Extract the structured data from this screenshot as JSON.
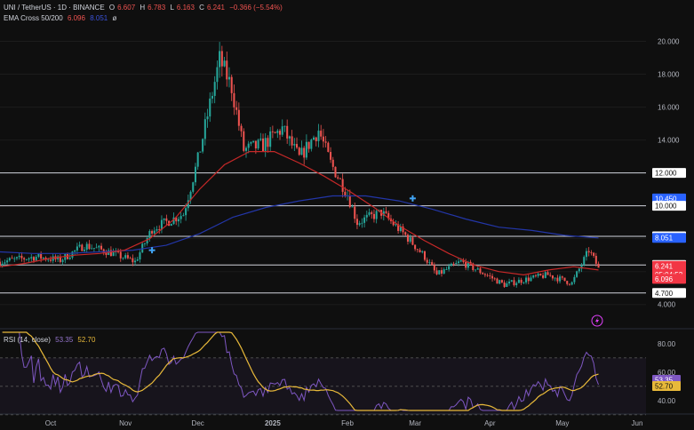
{
  "legend": {
    "symbol": "UNI / TetherUS · 1D · BINANCE",
    "open_label": "O",
    "open": "6.607",
    "high_label": "H",
    "high": "6.783",
    "low_label": "L",
    "low": "6.163",
    "close_label": "C",
    "close": "6.241",
    "change": "−0.366 (−5.54%)",
    "ema_label": "EMA Cross 50/200",
    "ema_fast": "6.096",
    "ema_slow": "8.051",
    "ema_icon": "ø",
    "rsi_label": "RSI (14, close)",
    "rsi_value": "53.35",
    "rsi_ma": "52.70"
  },
  "colors": {
    "bg": "#0f0f0f",
    "up": "#26a69a",
    "down": "#ef5350",
    "ema_fast": "#c62828",
    "ema_slow": "#2336a8",
    "rsi": "#7e57c2",
    "rsi_ma": "#e8b93a",
    "hline": "#d1d4dc",
    "cross_marker": "#42a5f5",
    "price_tag_current": "#f23645",
    "price_tag_ema_fast": "#f23645",
    "price_tag_ema_slow": "#2962ff",
    "price_tag_level": "#ffffff",
    "price_tag_blue": "#2962ff",
    "lightning_icon": "#e040fb"
  },
  "chart_data": [
    {
      "type": "candlestick",
      "title": "UNI / TetherUS · 1D · BINANCE",
      "x_tick_labels": [
        "Oct",
        "Nov",
        "Dec",
        "2025",
        "Feb",
        "Mar",
        "Apr",
        "May",
        "Jun"
      ],
      "y_tick_labels": [
        "4.000",
        "6.000",
        "8.000",
        "10.000",
        "12.000",
        "14.000",
        "16.000",
        "18.000",
        "20.000"
      ],
      "ylim": [
        3.5,
        21.0
      ],
      "y_scale": "linear",
      "approx_close_path": [
        {
          "date": "Sep 10",
          "close": 6.6
        },
        {
          "date": "Sep 25",
          "close": 6.9
        },
        {
          "date": "Oct 05",
          "close": 6.7
        },
        {
          "date": "Oct 15",
          "close": 7.6
        },
        {
          "date": "Oct 25",
          "close": 7.2
        },
        {
          "date": "Nov 05",
          "close": 6.6
        },
        {
          "date": "Nov 12",
          "close": 8.6
        },
        {
          "date": "Nov 25",
          "close": 9.5
        },
        {
          "date": "Dec 01",
          "close": 12.8
        },
        {
          "date": "Dec 05",
          "close": 15.5
        },
        {
          "date": "Dec 10",
          "close": 18.9
        },
        {
          "date": "Dec 15",
          "close": 17.2
        },
        {
          "date": "Dec 20",
          "close": 13.4
        },
        {
          "date": "Dec 28",
          "close": 13.7
        },
        {
          "date": "Jan 05",
          "close": 14.7
        },
        {
          "date": "Jan 12",
          "close": 12.9
        },
        {
          "date": "Jan 20",
          "close": 14.6
        },
        {
          "date": "Jan 25",
          "close": 12.6
        },
        {
          "date": "Feb 01",
          "close": 10.7
        },
        {
          "date": "Feb 05",
          "close": 9.0
        },
        {
          "date": "Feb 15",
          "close": 9.6
        },
        {
          "date": "Feb 25",
          "close": 8.2
        },
        {
          "date": "Mar 05",
          "close": 6.9
        },
        {
          "date": "Mar 10",
          "close": 5.8
        },
        {
          "date": "Mar 20",
          "close": 6.6
        },
        {
          "date": "Mar 28",
          "close": 6.0
        },
        {
          "date": "Apr 07",
          "close": 5.2
        },
        {
          "date": "Apr 15",
          "close": 5.5
        },
        {
          "date": "Apr 25",
          "close": 5.8
        },
        {
          "date": "May 05",
          "close": 5.3
        },
        {
          "date": "May 12",
          "close": 7.3
        },
        {
          "date": "May 16",
          "close": 6.24
        }
      ],
      "series": [
        {
          "name": "EMA 50",
          "values_approx": [
            6.3,
            6.5,
            6.8,
            7.0,
            7.1,
            7.3,
            8.0,
            9.2,
            11.0,
            12.5,
            13.3,
            13.3,
            12.6,
            11.8,
            10.9,
            9.9,
            8.8,
            7.9,
            7.1,
            6.4,
            6.0,
            5.8,
            6.1,
            6.3,
            6.1
          ]
        },
        {
          "name": "EMA 200",
          "values_approx": [
            7.2,
            7.1,
            7.1,
            7.2,
            7.3,
            7.6,
            8.3,
            9.3,
            9.9,
            10.3,
            10.6,
            10.6,
            10.3,
            9.8,
            9.2,
            8.7,
            8.5,
            8.2,
            8.05
          ]
        }
      ],
      "horizontal_lines": [
        4.7,
        6.4,
        8.145,
        10.0,
        12.0
      ],
      "price_axis_tags": [
        {
          "label": "12.000",
          "kind": "level"
        },
        {
          "label": "10.450",
          "kind": "blue"
        },
        {
          "label": "10.000",
          "kind": "level"
        },
        {
          "label": "8.145",
          "kind": "level"
        },
        {
          "label": "8.051",
          "kind": "ema_slow"
        },
        {
          "label": "6.400",
          "kind": "level"
        },
        {
          "label": "6.241",
          "sub": "05:04:52",
          "kind": "current"
        },
        {
          "label": "6.096",
          "kind": "ema_fast"
        },
        {
          "label": "4.700",
          "kind": "level"
        }
      ]
    },
    {
      "type": "line",
      "title": "RSI (14, close)",
      "y_tick_labels": [
        "40.00",
        "60.00",
        "80.00"
      ],
      "ylim": [
        33,
        88
      ],
      "band": [
        30,
        70
      ],
      "series": [
        {
          "name": "RSI",
          "last": 53.35
        },
        {
          "name": "RSI MA",
          "last": 52.7
        }
      ],
      "price_axis_tags": [
        {
          "label": "53.35",
          "kind": "rsi"
        },
        {
          "label": "52.70",
          "kind": "rsi_ma"
        }
      ]
    }
  ]
}
